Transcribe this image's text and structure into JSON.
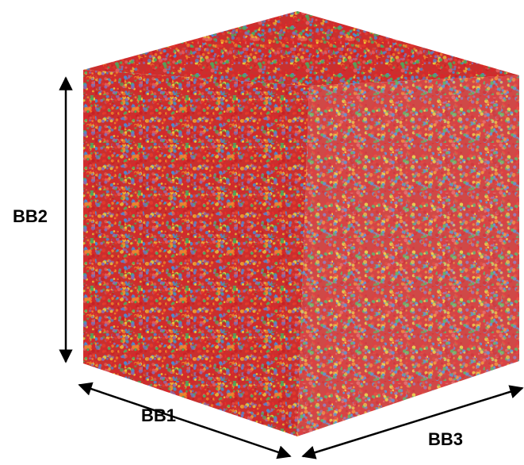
{
  "labels": {
    "bb1": "BB1",
    "bb2": "BB2",
    "bb3": "BB3"
  }
}
